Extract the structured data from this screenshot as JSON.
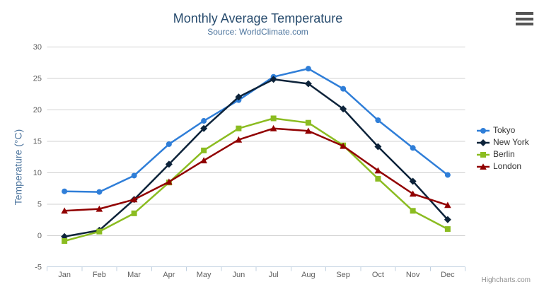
{
  "chart_data": {
    "type": "line",
    "title": "Monthly Average Temperature",
    "subtitle": "Source: WorldClimate.com",
    "ylabel": "Temperature (°C)",
    "xlabel": "",
    "ylim": [
      -5,
      30
    ],
    "ytick_interval": 5,
    "grid": true,
    "legend_position": "right",
    "categories": [
      "Jan",
      "Feb",
      "Mar",
      "Apr",
      "May",
      "Jun",
      "Jul",
      "Aug",
      "Sep",
      "Oct",
      "Nov",
      "Dec"
    ],
    "series": [
      {
        "name": "Tokyo",
        "marker": "circle",
        "color": "#2f7ed8",
        "values": [
          7.0,
          6.9,
          9.5,
          14.5,
          18.2,
          21.5,
          25.2,
          26.5,
          23.3,
          18.3,
          13.9,
          9.6
        ]
      },
      {
        "name": "New York",
        "marker": "diamond",
        "color": "#0d233a",
        "values": [
          -0.2,
          0.8,
          5.7,
          11.3,
          17.0,
          22.0,
          24.8,
          24.1,
          20.1,
          14.1,
          8.6,
          2.5
        ]
      },
      {
        "name": "Berlin",
        "marker": "square",
        "color": "#8bbc21",
        "values": [
          -0.9,
          0.6,
          3.5,
          8.4,
          13.5,
          17.0,
          18.6,
          17.9,
          14.3,
          9.0,
          3.9,
          1.0
        ]
      },
      {
        "name": "London",
        "marker": "triangle",
        "color": "#910000",
        "values": [
          3.9,
          4.2,
          5.7,
          8.5,
          11.9,
          15.2,
          17.0,
          16.6,
          14.2,
          10.3,
          6.6,
          4.8
        ]
      }
    ]
  },
  "credits": {
    "label": "Highcharts.com"
  },
  "export_menu": {
    "icon": "hamburger"
  },
  "colors": {
    "background": "#ffffff",
    "title": "#274b6d",
    "subtitle": "#4d759e",
    "axis_title": "#4d759e",
    "axis_labels": "#606060",
    "grid_line": "#d0d0d0",
    "axis_line": "#c0d0e0",
    "legend_text": "#333333",
    "credits": "#909090"
  }
}
